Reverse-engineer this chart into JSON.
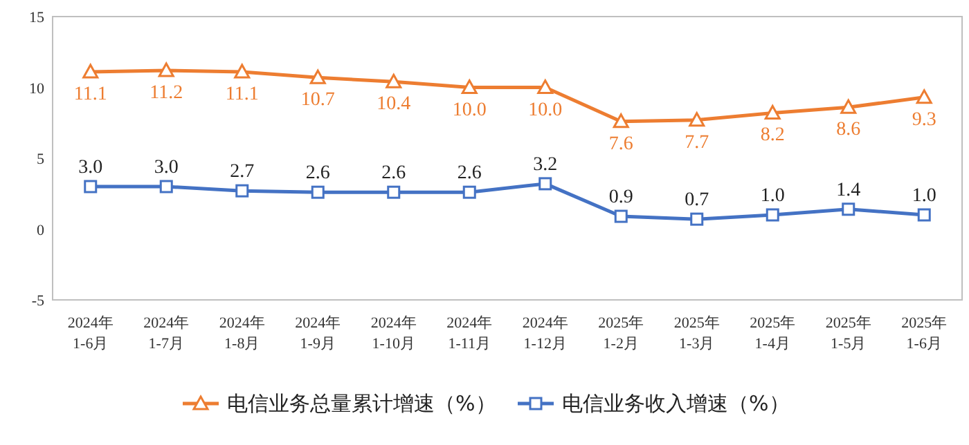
{
  "chart_data": {
    "type": "line",
    "categories": [
      "2024年 1-6月",
      "2024年 1-7月",
      "2024年 1-8月",
      "2024年 1-9月",
      "2024年 1-10月",
      "2024年 1-11月",
      "2024年 1-12月",
      "2025年 1-2月",
      "2025年 1-3月",
      "2025年 1-4月",
      "2025年 1-5月",
      "2025年 1-6月"
    ],
    "series": [
      {
        "name": "电信业务总量累计增速（%）",
        "color": "#ed7d31",
        "marker": "triangle",
        "values": [
          11.1,
          11.2,
          11.1,
          10.7,
          10.4,
          10.0,
          10.0,
          7.6,
          7.7,
          8.2,
          8.6,
          9.3
        ],
        "value_labels": [
          "11.1",
          "11.2",
          "11.1",
          "10.7",
          "10.4",
          "10.0",
          "10.0",
          "7.6",
          "7.7",
          "8.2",
          "8.6",
          "9.3"
        ]
      },
      {
        "name": "电信业务收入增速（%）",
        "color": "#4472c4",
        "marker": "square",
        "values": [
          3.0,
          3.0,
          2.7,
          2.6,
          2.6,
          2.6,
          3.2,
          0.9,
          0.7,
          1.0,
          1.4,
          1.0
        ],
        "value_labels": [
          "3.0",
          "3.0",
          "2.7",
          "2.6",
          "2.6",
          "2.6",
          "3.2",
          "0.9",
          "0.7",
          "1.0",
          "1.4",
          "1.0"
        ]
      }
    ],
    "ylim": [
      -5,
      15
    ],
    "yticks": [
      -5,
      0,
      5,
      10,
      15
    ],
    "grid": false,
    "legend": "bottom"
  }
}
